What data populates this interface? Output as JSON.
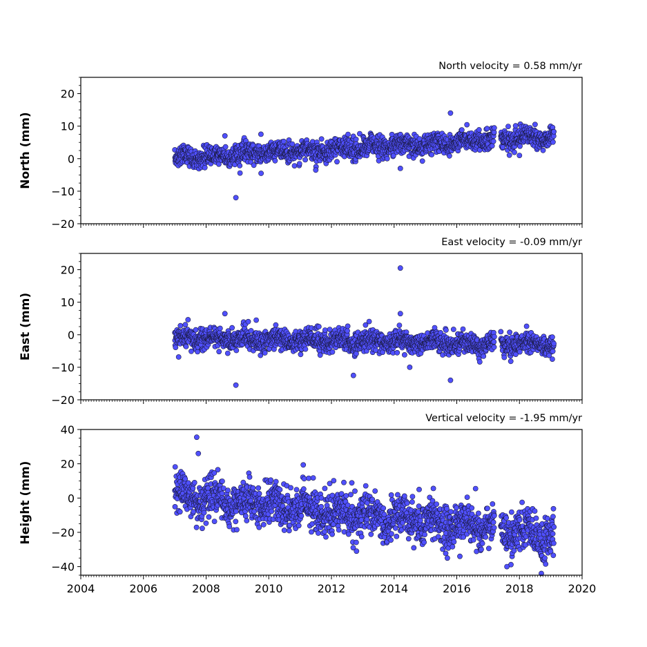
{
  "chart_data": [
    {
      "type": "scatter",
      "title": "North velocity = 0.58 mm/yr",
      "ylabel": "North (mm)",
      "xlim": [
        2004,
        2020
      ],
      "ylim": [
        -20,
        25
      ],
      "yticks": [
        -20,
        -10,
        0,
        10,
        20
      ],
      "trend": {
        "start": [
          2007.0,
          0
        ],
        "end": [
          2019.1,
          7
        ]
      },
      "scatter_sd": 1.5,
      "gap": [
        2017.2,
        2017.4
      ],
      "outliers": [
        {
          "x": 2008.95,
          "y": -12
        },
        {
          "x": 2015.8,
          "y": 14
        },
        {
          "x": 2014.2,
          "y": -3
        },
        {
          "x": 2018.5,
          "y": 10.5
        },
        {
          "x": 2008.6,
          "y": 7
        },
        {
          "x": 2011.5,
          "y": -3.5
        },
        {
          "x": 2009.75,
          "y": 7.5
        },
        {
          "x": 2018.0,
          "y": 1
        }
      ]
    },
    {
      "type": "scatter",
      "title": "East velocity = -0.09 mm/yr",
      "ylabel": "East (mm)",
      "xlim": [
        2004,
        2020
      ],
      "ylim": [
        -20,
        25
      ],
      "yticks": [
        -20,
        -10,
        0,
        10,
        20
      ],
      "trend": {
        "start": [
          2007.0,
          -1
        ],
        "end": [
          2019.1,
          -3
        ]
      },
      "scatter_sd": 1.6,
      "gap": [
        2017.2,
        2017.4
      ],
      "outliers": [
        {
          "x": 2014.2,
          "y": 20.5
        },
        {
          "x": 2014.2,
          "y": 6.5
        },
        {
          "x": 2008.6,
          "y": 6.5
        },
        {
          "x": 2008.95,
          "y": -15.5
        },
        {
          "x": 2015.8,
          "y": -14
        },
        {
          "x": 2012.7,
          "y": -12.5
        },
        {
          "x": 2014.5,
          "y": -10
        },
        {
          "x": 2009.6,
          "y": 4.5
        },
        {
          "x": 2011.6,
          "y": 2.5
        },
        {
          "x": 2019.05,
          "y": -7.5
        }
      ]
    },
    {
      "type": "scatter",
      "title": "Vertical velocity = -1.95 mm/yr",
      "ylabel": "Height (mm)",
      "xlim": [
        2004,
        2020
      ],
      "ylim": [
        -45,
        40
      ],
      "yticks": [
        -40,
        -20,
        0,
        20,
        40
      ],
      "trend": {
        "start": [
          2007.0,
          2
        ],
        "end": [
          2019.1,
          -22
        ]
      },
      "scatter_sd": 6,
      "gap": [
        2017.2,
        2017.4
      ],
      "outliers": [
        {
          "x": 2007.7,
          "y": 35.5
        },
        {
          "x": 2007.75,
          "y": 26
        },
        {
          "x": 2018.7,
          "y": -44
        },
        {
          "x": 2017.6,
          "y": -40
        },
        {
          "x": 2015.7,
          "y": -35
        },
        {
          "x": 2016.1,
          "y": -34
        },
        {
          "x": 2014.8,
          "y": 5
        },
        {
          "x": 2016.6,
          "y": 5.5
        },
        {
          "x": 2012.8,
          "y": -31
        }
      ]
    }
  ],
  "x_ticks": [
    2004,
    2006,
    2008,
    2010,
    2012,
    2014,
    2016,
    2018,
    2020
  ],
  "colors": {
    "marker_fill": "#5050ff",
    "marker_edge": "#1a1a40",
    "axis": "#000000"
  }
}
